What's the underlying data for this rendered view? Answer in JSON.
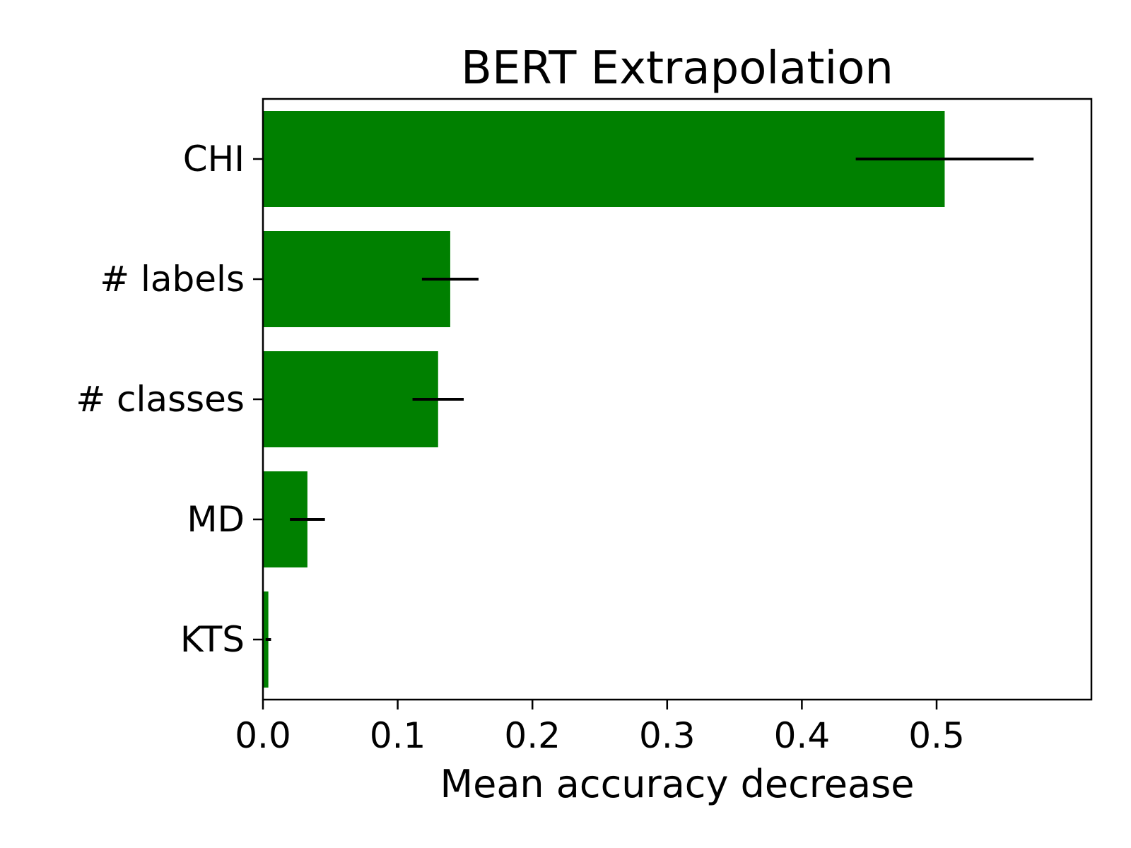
{
  "chart_data": {
    "type": "bar",
    "orientation": "horizontal",
    "title": "BERT Extrapolation",
    "xlabel": "Mean accuracy decrease",
    "ylabel": "",
    "xlim": [
      0,
      0.6
    ],
    "xticks": [
      0.0,
      0.1,
      0.2,
      0.3,
      0.4,
      0.5
    ],
    "xtick_labels": [
      "0.0",
      "0.1",
      "0.2",
      "0.3",
      "0.4",
      "0.5"
    ],
    "grid": false,
    "bar_color": "#008000",
    "error_color": "#000000",
    "categories": [
      "CHI",
      "# labels",
      "# classes",
      "MD",
      "KTS"
    ],
    "values": [
      0.506,
      0.139,
      0.13,
      0.033,
      0.004
    ],
    "errors": [
      0.066,
      0.021,
      0.019,
      0.013,
      0.002
    ]
  }
}
